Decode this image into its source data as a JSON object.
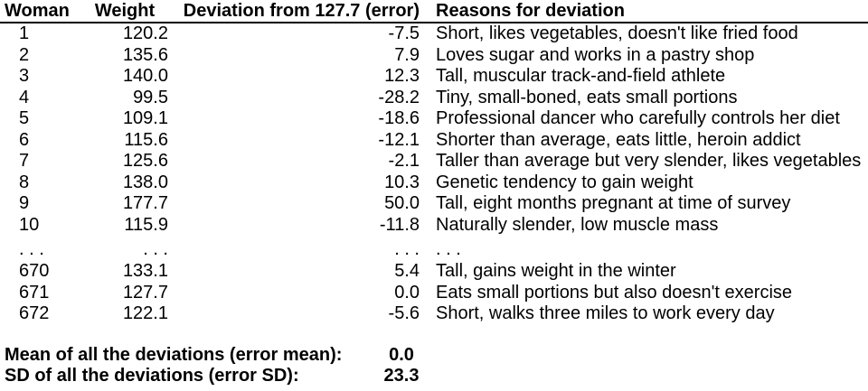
{
  "header": {
    "columns": [
      "Woman",
      "Weight",
      "Deviation from 127.7 (error)",
      "Reasons for deviation"
    ]
  },
  "rows": [
    {
      "woman": "1",
      "weight": "120.2",
      "deviation": "-7.5",
      "reason": "Short, likes vegetables, doesn't like fried food"
    },
    {
      "woman": "2",
      "weight": "135.6",
      "deviation": "7.9",
      "reason": "Loves sugar and works in a pastry shop"
    },
    {
      "woman": "3",
      "weight": "140.0",
      "deviation": "12.3",
      "reason": "Tall, muscular track-and-field athlete"
    },
    {
      "woman": "4",
      "weight": "99.5",
      "deviation": "-28.2",
      "reason": "Tiny, small-boned, eats small portions"
    },
    {
      "woman": "5",
      "weight": "109.1",
      "deviation": "-18.6",
      "reason": "Professional dancer who carefully controls her diet"
    },
    {
      "woman": "6",
      "weight": "115.6",
      "deviation": "-12.1",
      "reason": "Shorter than average, eats little, heroin addict"
    },
    {
      "woman": "7",
      "weight": "125.6",
      "deviation": "-2.1",
      "reason": "Taller than average but very slender, likes vegetables"
    },
    {
      "woman": "8",
      "weight": "138.0",
      "deviation": "10.3",
      "reason": "Genetic tendency to gain weight"
    },
    {
      "woman": "9",
      "weight": "177.7",
      "deviation": "50.0",
      "reason": "Tall, eight months pregnant at time of survey"
    },
    {
      "woman": "10",
      "weight": "115.9",
      "deviation": "-11.8",
      "reason": "Naturally slender, low muscle mass"
    },
    {
      "woman": ". . .",
      "weight": ". . .",
      "deviation": ". . .",
      "reason": ". . ."
    },
    {
      "woman": "670",
      "weight": "133.1",
      "deviation": "5.4",
      "reason": "Tall, gains weight in the winter"
    },
    {
      "woman": "671",
      "weight": "127.7",
      "deviation": "0.0",
      "reason": "Eats small portions but also doesn't exercise"
    },
    {
      "woman": "672",
      "weight": "122.1",
      "deviation": "-5.6",
      "reason": "Short, walks three miles to work every day"
    }
  ],
  "summary": {
    "mean_label": "Mean of all the deviations (error mean):",
    "mean_value": "0.0",
    "sd_label": "SD of all the deviations (error SD):",
    "sd_value": "23.3"
  },
  "colors": {
    "background": "#ffffff",
    "text": "#000000",
    "header_rule": "#000000"
  }
}
